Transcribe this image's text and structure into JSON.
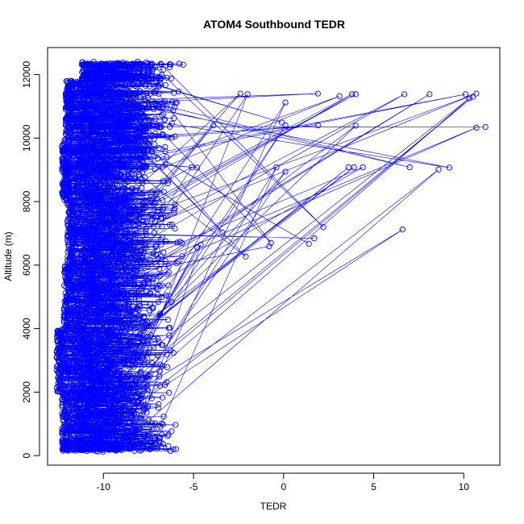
{
  "chart_data": {
    "type": "scatter",
    "title": "ATOM4 Southbound TEDR",
    "xlabel": "TEDR",
    "ylabel": "Altitude (m)",
    "xlim": [
      -13.1,
      12.0
    ],
    "ylim": [
      -300,
      12850
    ],
    "x_ticks": [
      -10,
      -5,
      0,
      5,
      10
    ],
    "y_ticks": [
      0,
      2000,
      4000,
      6000,
      8000,
      10000,
      12000
    ],
    "grid": false,
    "legend": "none",
    "marker": "open-circle",
    "connect_points": true,
    "color": "#0000ff",
    "series": [
      {
        "name": "",
        "bulk": [
          {
            "alt": [
              100,
              2000
            ],
            "x_min": -12.3,
            "x_max": -5.9
          },
          {
            "alt": [
              2000,
              4000
            ],
            "x_min": -12.6,
            "x_max": -6.1
          },
          {
            "alt": [
              4000,
              6000
            ],
            "x_min": -12.2,
            "x_max": -6.0
          },
          {
            "alt": [
              6000,
              8000
            ],
            "x_min": -12.0,
            "x_max": -5.6
          },
          {
            "alt": [
              8000,
              10000
            ],
            "x_min": -12.3,
            "x_max": -6.2
          },
          {
            "alt": [
              10000,
              11800
            ],
            "x_min": -12.1,
            "x_max": -5.8
          },
          {
            "alt": [
              11800,
              12400
            ],
            "x_min": -11.2,
            "x_max": -5.5
          }
        ],
        "outliers": [
          {
            "x": 11.2,
            "y": 10350
          },
          {
            "x": 10.7,
            "y": 10330
          },
          {
            "x": 4.0,
            "y": 10390
          },
          {
            "x": 1.9,
            "y": 10400
          },
          {
            "x": 0.1,
            "y": 10400
          },
          {
            "x": -3.9,
            "y": 10400
          },
          {
            "x": -0.1,
            "y": 10490
          },
          {
            "x": 10.7,
            "y": 11400
          },
          {
            "x": 10.5,
            "y": 11300
          },
          {
            "x": 10.3,
            "y": 11250
          },
          {
            "x": 10.1,
            "y": 11380
          },
          {
            "x": 8.1,
            "y": 11380
          },
          {
            "x": 6.7,
            "y": 11380
          },
          {
            "x": 4.0,
            "y": 11380
          },
          {
            "x": 3.8,
            "y": 11380
          },
          {
            "x": 3.1,
            "y": 11320
          },
          {
            "x": 1.9,
            "y": 11400
          },
          {
            "x": 0.1,
            "y": 11120
          },
          {
            "x": -2.0,
            "y": 11380
          },
          {
            "x": -2.4,
            "y": 11400
          },
          {
            "x": 9.2,
            "y": 9070
          },
          {
            "x": 8.6,
            "y": 9010
          },
          {
            "x": 7.0,
            "y": 9080
          },
          {
            "x": 4.4,
            "y": 9080
          },
          {
            "x": 3.9,
            "y": 9080
          },
          {
            "x": 3.6,
            "y": 9080
          },
          {
            "x": -0.4,
            "y": 9080
          },
          {
            "x": 0.1,
            "y": 8940
          },
          {
            "x": -4.8,
            "y": 9070
          },
          {
            "x": -5.1,
            "y": 9080
          },
          {
            "x": 6.6,
            "y": 7120
          },
          {
            "x": 2.2,
            "y": 7200
          },
          {
            "x": 1.7,
            "y": 6840
          },
          {
            "x": 1.4,
            "y": 6670
          },
          {
            "x": -3.4,
            "y": 7030
          },
          {
            "x": -0.7,
            "y": 6700
          },
          {
            "x": -0.8,
            "y": 6590
          },
          {
            "x": -2.1,
            "y": 6270
          },
          {
            "x": -4.6,
            "y": 6640
          },
          {
            "x": -4.8,
            "y": 6560
          },
          {
            "x": -12.6,
            "y": 3090
          }
        ]
      }
    ]
  }
}
